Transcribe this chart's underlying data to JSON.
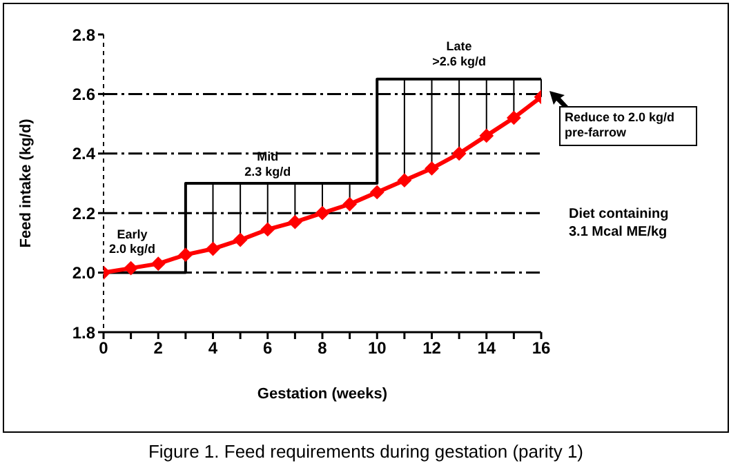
{
  "chart_data": {
    "type": "line",
    "xlabel": "Gestation (weeks)",
    "ylabel": "Feed intake (kg/d)",
    "xlim": [
      0,
      16
    ],
    "xticks": [
      0,
      {
        "value": 1,
        "label": null
      },
      2,
      {
        "value": 3,
        "label": null
      },
      4,
      {
        "value": 5,
        "label": null
      },
      6,
      {
        "value": 7,
        "label": null
      },
      8,
      {
        "value": 9,
        "label": null
      },
      10,
      {
        "value": 11,
        "label": null
      },
      12,
      {
        "value": 13,
        "label": null
      },
      14,
      {
        "value": 15,
        "label": null
      },
      16
    ],
    "ylim": [
      1.8,
      2.8
    ],
    "yticks": [
      1.8,
      {
        "value": 2.0,
        "label": "2.0"
      },
      2.2,
      2.4,
      2.6,
      2.8
    ],
    "grid": "y",
    "x": [
      0,
      1,
      2,
      3,
      4,
      5,
      6,
      7,
      8,
      9,
      10,
      11,
      12,
      13,
      14,
      15,
      16
    ],
    "series": [
      {
        "color": "#ff0000",
        "marker": "diamond",
        "values": [
          2.0,
          2.015,
          2.03,
          2.06,
          2.08,
          2.11,
          2.145,
          2.17,
          2.2,
          2.23,
          2.27,
          2.31,
          2.35,
          2.4,
          2.46,
          2.52,
          2.59
        ],
        "errors": [
          null,
          null,
          null,
          null,
          [
            2.08,
            2.3
          ],
          [
            2.11,
            2.3
          ],
          [
            2.145,
            2.3
          ],
          [
            2.17,
            2.3
          ],
          [
            2.2,
            2.3
          ],
          [
            2.23,
            2.3
          ],
          null,
          [
            2.31,
            2.65
          ],
          [
            2.35,
            2.65
          ],
          [
            2.4,
            2.65
          ],
          [
            2.46,
            2.65
          ],
          [
            2.52,
            2.65
          ],
          [
            2.59,
            2.65
          ]
        ]
      },
      {
        "type": "step",
        "color": "#000000",
        "marker": "none",
        "x": [
          0,
          3,
          10,
          16
        ],
        "values": [
          2.0,
          2.3,
          2.65,
          2.65
        ]
      }
    ],
    "annotations": [
      "Early\n2.0 kg/d",
      "Mid\n2.3 kg/d",
      "Late\n>2.6 kg/d",
      {
        "text": "Reduce to 2.0 kg/d pre-farrow",
        "x": 16,
        "y": 2.59
      },
      "Diet containing\n3.1 Mcal ME/kg",
      "Figure 1. Feed requirements during gestation (parity 1)"
    ]
  }
}
